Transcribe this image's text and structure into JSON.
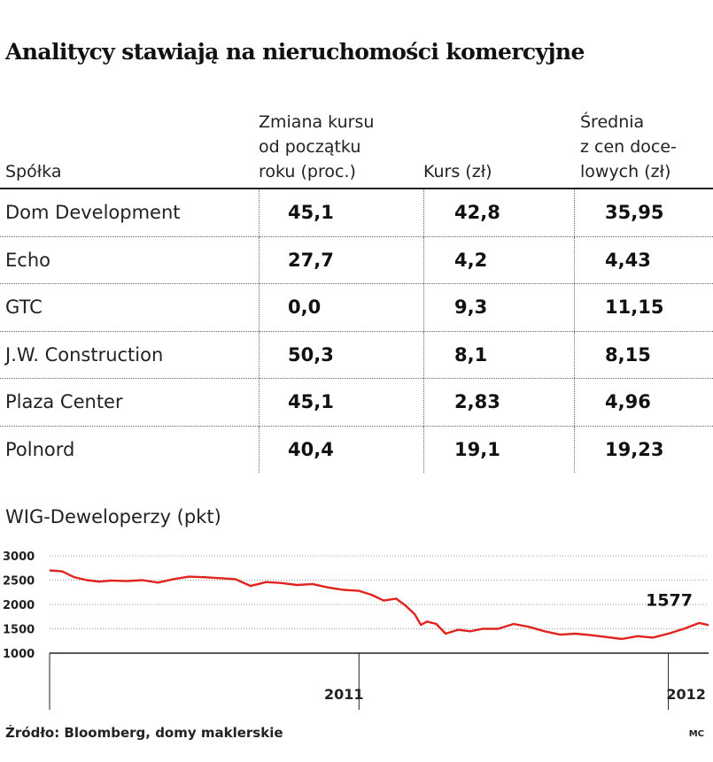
{
  "title": "Analitycy stawiają na nieruchomości komercyjne",
  "table": {
    "headers": {
      "company": "Spółka",
      "change": [
        "Zmiana kursu",
        "od początku",
        "roku (proc.)"
      ],
      "price": "Kurs (zł)",
      "target": [
        "Średnia",
        "z cen doce-",
        "lowych (zł)"
      ]
    },
    "rows": [
      {
        "company": "Dom Development",
        "change": "45,1",
        "price": "42,8",
        "target": "35,95"
      },
      {
        "company": "Echo",
        "change": "27,7",
        "price": "4,2",
        "target": "4,43"
      },
      {
        "company": "GTC",
        "change": "0,0",
        "price": "9,3",
        "target": "11,15"
      },
      {
        "company": "J.W. Construction",
        "change": "50,3",
        "price": "8,1",
        "target": "8,15"
      },
      {
        "company": "Plaza Center",
        "change": "45,1",
        "price": "2,83",
        "target": "4,96"
      },
      {
        "company": "Polnord",
        "change": "40,4",
        "price": "19,1",
        "target": "19,23"
      }
    ]
  },
  "chart_data": {
    "type": "line",
    "title": "WIG-Deweloperzy (pkt)",
    "ylim": [
      1000,
      3000
    ],
    "yticks": [
      1000,
      1500,
      2000,
      2500,
      3000
    ],
    "x_range": [
      2010.0,
      2012.13
    ],
    "x_tick_labels": [
      {
        "x": 2011.0,
        "label": "2011"
      },
      {
        "x": 2012.0,
        "label": "2012"
      }
    ],
    "last_value_label": "1577",
    "line_color": "#e0231c",
    "series": [
      {
        "x": [
          2010.0,
          2010.04,
          2010.08,
          2010.12,
          2010.16,
          2010.2,
          2010.25,
          2010.3,
          2010.35,
          2010.4,
          2010.45,
          2010.5,
          2010.55,
          2010.6,
          2010.65,
          2010.7,
          2010.75,
          2010.8,
          2010.85,
          2010.9,
          2010.95,
          2011.0,
          2011.04,
          2011.08,
          2011.12,
          2011.15,
          2011.18,
          2011.2,
          2011.22,
          2011.25,
          2011.28,
          2011.32,
          2011.36,
          2011.4,
          2011.45,
          2011.5,
          2011.55,
          2011.6,
          2011.65,
          2011.7,
          2011.75,
          2011.8,
          2011.85,
          2011.9,
          2011.95,
          2012.0,
          2012.05,
          2012.1,
          2012.13
        ],
        "y": [
          2700,
          2680,
          2560,
          2500,
          2470,
          2490,
          2480,
          2500,
          2450,
          2520,
          2570,
          2560,
          2540,
          2520,
          2380,
          2460,
          2440,
          2400,
          2420,
          2350,
          2300,
          2280,
          2200,
          2080,
          2120,
          1980,
          1800,
          1580,
          1650,
          1600,
          1400,
          1480,
          1450,
          1500,
          1500,
          1600,
          1540,
          1450,
          1380,
          1400,
          1370,
          1330,
          1290,
          1350,
          1320,
          1400,
          1500,
          1620,
          1577
        ]
      }
    ]
  },
  "source": "Źródło: Bloomberg, domy maklerskie",
  "credit": "MC"
}
